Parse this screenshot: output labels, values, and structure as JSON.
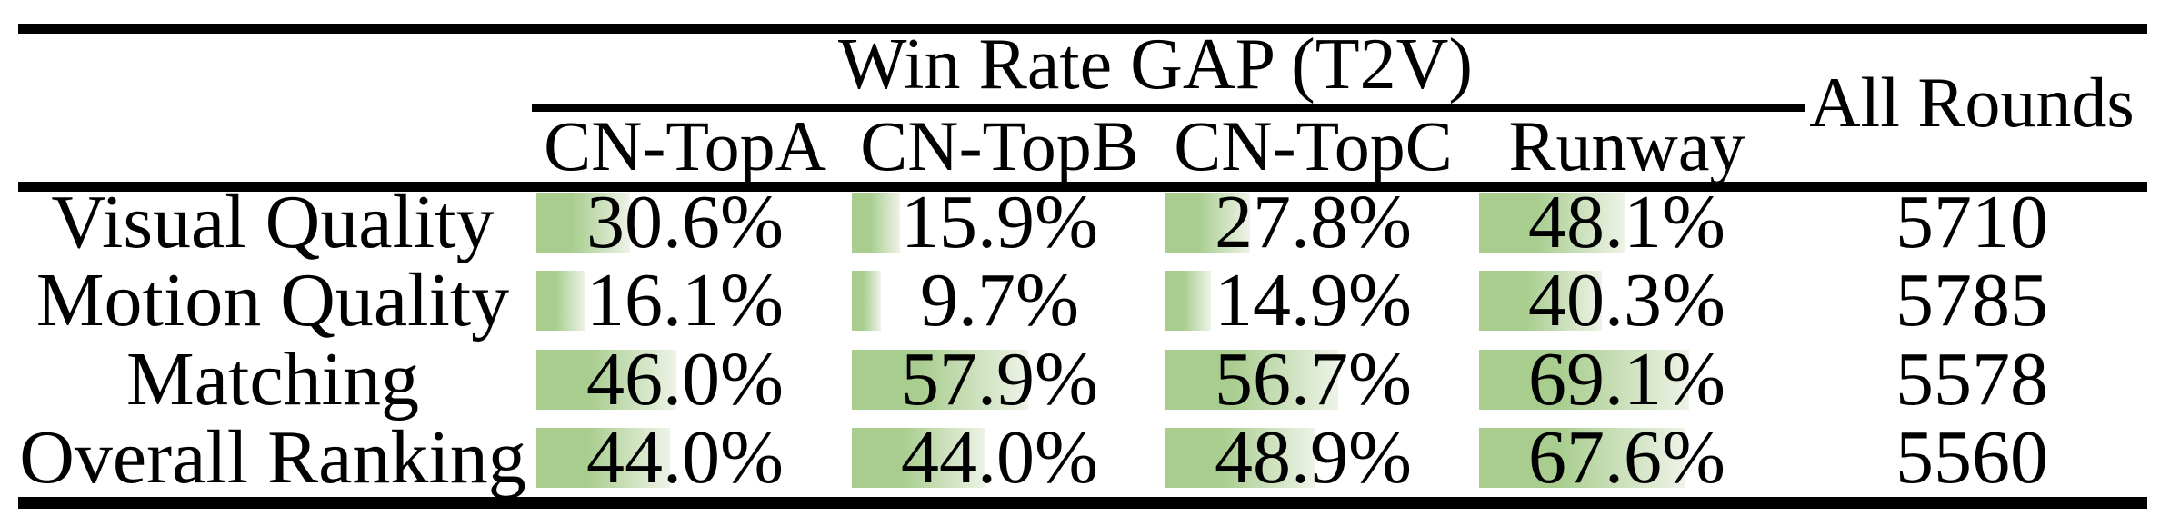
{
  "table": {
    "title": "Win Rate GAP (T2V)",
    "all_rounds_header": "All Rounds",
    "columns": [
      "CN-TopA",
      "CN-TopB",
      "CN-TopC",
      "Runway"
    ],
    "rows": [
      {
        "label": "Visual Quality",
        "cells": [
          {
            "value": 30.6,
            "display": "30.6%"
          },
          {
            "value": 15.9,
            "display": "15.9%"
          },
          {
            "value": 27.8,
            "display": "27.8%"
          },
          {
            "value": 48.1,
            "display": "48.1%"
          }
        ],
        "all_rounds": "5710"
      },
      {
        "label": "Motion Quality",
        "cells": [
          {
            "value": 16.1,
            "display": "16.1%"
          },
          {
            "value": 9.7,
            "display": "9.7%"
          },
          {
            "value": 14.9,
            "display": "14.9%"
          },
          {
            "value": 40.3,
            "display": "40.3%"
          }
        ],
        "all_rounds": "5785"
      },
      {
        "label": "Matching",
        "cells": [
          {
            "value": 46.0,
            "display": "46.0%"
          },
          {
            "value": 57.9,
            "display": "57.9%"
          },
          {
            "value": 56.7,
            "display": "56.7%"
          },
          {
            "value": 69.1,
            "display": "69.1%"
          }
        ],
        "all_rounds": "5578"
      },
      {
        "label": "Overall Ranking",
        "cells": [
          {
            "value": 44.0,
            "display": "44.0%"
          },
          {
            "value": 44.0,
            "display": "44.0%"
          },
          {
            "value": 48.9,
            "display": "48.9%"
          },
          {
            "value": 67.6,
            "display": "67.6%"
          }
        ],
        "all_rounds": "5560"
      }
    ],
    "colors": {
      "bar_green": "#a8cd8e",
      "bar_fade": "#eef3e7",
      "rule_black": "#000000"
    }
  }
}
